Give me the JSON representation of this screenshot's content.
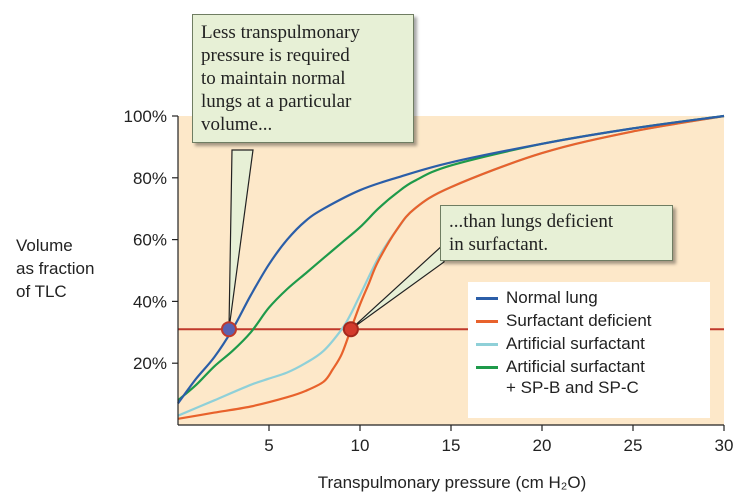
{
  "chart_data": {
    "type": "line",
    "xlabel": "Transpulmonary pressure (cm H₂O)",
    "ylabel_lines": [
      "Volume",
      "as fraction",
      "of TLC"
    ],
    "xlim": [
      0,
      30
    ],
    "ylim": [
      0,
      100
    ],
    "x_ticks": [
      5,
      10,
      15,
      20,
      25,
      30
    ],
    "y_ticks": [
      20,
      40,
      60,
      80,
      100
    ],
    "y_tick_labels": [
      "20%",
      "40%",
      "60%",
      "80%",
      "100%"
    ],
    "shaded_region": {
      "x": [
        0,
        30
      ],
      "y": [
        0,
        100
      ],
      "color": "#fde8c9"
    },
    "reference_line": {
      "y": 31,
      "color": "#c0392b"
    },
    "series": [
      {
        "name": "Normal lung",
        "color": "#2b5ea8",
        "x": [
          0,
          1,
          2,
          3,
          4,
          5,
          6,
          7,
          8,
          10,
          12,
          15,
          20,
          25,
          30
        ],
        "y": [
          7,
          15,
          22,
          31,
          42,
          52,
          60,
          66,
          70,
          76,
          80,
          85,
          91,
          96,
          100
        ]
      },
      {
        "name": "Surfactant deficient",
        "color": "#e8622c",
        "x": [
          0,
          2,
          4,
          6,
          7,
          8,
          8.5,
          9,
          9.5,
          10,
          10.5,
          11,
          12,
          13,
          15,
          20,
          25,
          30
        ],
        "y": [
          2,
          4,
          6,
          9,
          11,
          14,
          18,
          23,
          31,
          39,
          46,
          53,
          63,
          70,
          77,
          88,
          95,
          100
        ]
      },
      {
        "name": "Artificial surfactant",
        "color": "#8fd0d8",
        "x": [
          0,
          2,
          4,
          5,
          6,
          7,
          8,
          9,
          9.5,
          10,
          11,
          12,
          13,
          15,
          20,
          25,
          30
        ],
        "y": [
          3,
          8,
          13,
          15,
          17,
          20,
          24,
          31,
          36,
          42,
          54,
          63,
          70,
          77,
          88,
          95,
          100
        ]
      },
      {
        "name": "Artificial surfactant\n+ SP-B and SP-C",
        "color": "#1e9a4a",
        "x": [
          0,
          1,
          2,
          3,
          4,
          5,
          6,
          7,
          8,
          9,
          10,
          11,
          12,
          13,
          15,
          20,
          25,
          30
        ],
        "y": [
          8,
          13,
          19,
          24,
          30,
          38,
          44,
          49,
          54,
          59,
          64,
          70,
          75,
          79,
          84,
          91,
          96,
          100
        ]
      }
    ],
    "markers": [
      {
        "x": 2.8,
        "y": 31,
        "fill": "#5a62b0",
        "stroke": "#c0392b"
      },
      {
        "x": 9.5,
        "y": 31,
        "fill": "#d33a2c",
        "stroke": "#a5281c"
      }
    ],
    "annotations": [
      {
        "lines": [
          "Less transpulmonary",
          "pressure is required",
          "to maintain normal",
          "lungs at a particular",
          "volume..."
        ]
      },
      {
        "lines": [
          "...than lungs deficient",
          "in surfactant."
        ]
      }
    ]
  }
}
